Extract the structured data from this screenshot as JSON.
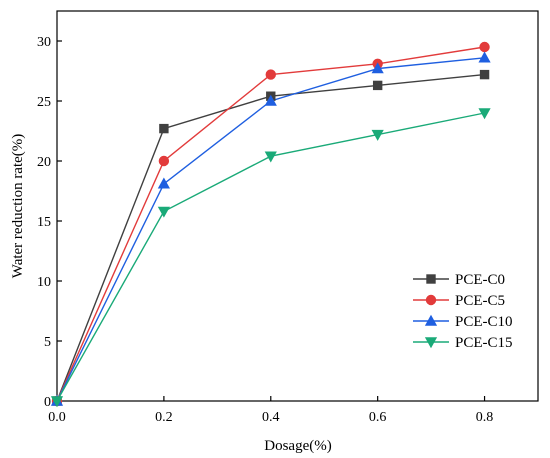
{
  "chart_data": {
    "type": "line",
    "title": "",
    "xlabel": "Dosage(%)",
    "ylabel": "Water reduction rate(%)",
    "xlim": [
      0,
      0.9
    ],
    "ylim": [
      0,
      32.5
    ],
    "x_ticks": [
      "0.0",
      "0.2",
      "0.4",
      "0.6",
      "0.8"
    ],
    "y_ticks": [
      "0",
      "5",
      "10",
      "15",
      "20",
      "25",
      "30"
    ],
    "legend_position": "right",
    "grid": false,
    "x": [
      0.0,
      0.2,
      0.4,
      0.6,
      0.8
    ],
    "series": [
      {
        "name": "PCE-C0",
        "values": [
          0,
          22.7,
          25.4,
          26.3,
          27.2
        ],
        "color": "#404040",
        "marker": "square"
      },
      {
        "name": "PCE-C5",
        "values": [
          0,
          20.0,
          27.2,
          28.1,
          29.5
        ],
        "color": "#e23b3b",
        "marker": "circle"
      },
      {
        "name": "PCE-C10",
        "values": [
          0,
          18.1,
          25.0,
          27.7,
          28.6
        ],
        "color": "#1f5fe0",
        "marker": "triangle-up"
      },
      {
        "name": "PCE-C15",
        "values": [
          0,
          15.8,
          20.4,
          22.2,
          24.0
        ],
        "color": "#1aaa78",
        "marker": "triangle-down"
      }
    ]
  }
}
